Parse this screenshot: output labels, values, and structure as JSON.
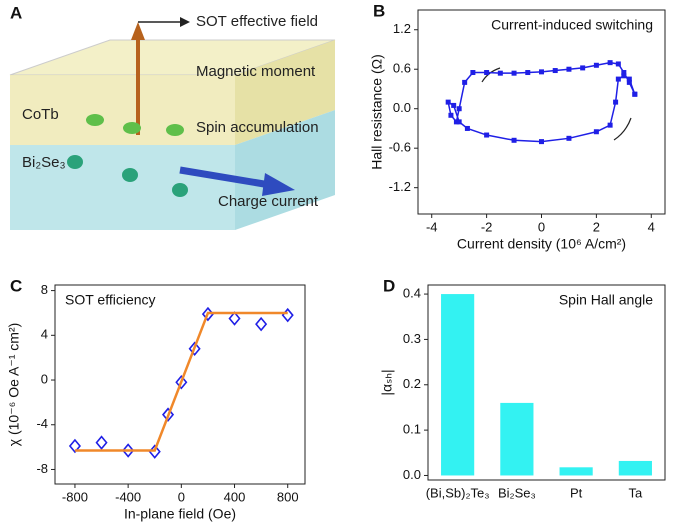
{
  "diagram": {
    "panel": "A",
    "labels": [
      "SOT effective field",
      "Magnetic moment",
      "CoTb",
      "Spin accumulation",
      "Bi₂Se₃",
      "Charge current"
    ]
  },
  "chart_data": [
    {
      "panel": "B",
      "type": "line",
      "title": "Current-induced switching",
      "xlabel": "Current density (10⁶ A/cm²)",
      "ylabel": "Hall resistance (Ω)",
      "xlim": [
        -4.5,
        4.5
      ],
      "xticks": [
        -4,
        -2,
        0,
        2,
        4
      ],
      "ylim": [
        -1.6,
        1.5
      ],
      "yticks": [
        {
          "value": 1.2,
          "label": "1.2"
        },
        {
          "value": 0.6,
          "label": "0.6"
        },
        {
          "value": 0,
          "label": "0.0"
        },
        {
          "value": -0.6,
          "label": "-0.6"
        },
        {
          "value": -1.2,
          "label": "-1.2"
        }
      ],
      "color": "#1f1fe6",
      "x": [
        3.4,
        3.2,
        3.0,
        2.8,
        2.5,
        2.0,
        1.5,
        1.0,
        0.5,
        0,
        -0.5,
        -1.0,
        -1.5,
        -2.0,
        -2.5,
        -2.8,
        -3.0,
        -3.1,
        -3.3,
        -3.4,
        -3.2,
        -3.0,
        -2.7,
        -2.0,
        -1.0,
        0,
        1.0,
        2.0,
        2.5,
        2.7,
        2.8,
        3.0,
        3.2,
        3.4
      ],
      "values": [
        0.22,
        0.4,
        0.55,
        0.68,
        0.7,
        0.66,
        0.62,
        0.6,
        0.58,
        0.56,
        0.55,
        0.54,
        0.54,
        0.55,
        0.55,
        0.4,
        0.0,
        -0.2,
        -0.1,
        0.1,
        0.05,
        -0.2,
        -0.3,
        -0.4,
        -0.48,
        -0.5,
        -0.45,
        -0.35,
        -0.25,
        0.1,
        0.45,
        0.5,
        0.45,
        0.22
      ]
    },
    {
      "panel": "C",
      "type": "scatter",
      "title": "SOT efficiency",
      "xlabel": "In-plane field (Oe)",
      "ylabel": "χ (10⁻⁶ Oe A⁻¹ cm²)",
      "xlim": [
        -950,
        930
      ],
      "xticks": [
        -800,
        -400,
        0,
        400,
        800
      ],
      "ylim": [
        -9.3,
        8.5
      ],
      "yticks": [
        8,
        4,
        0,
        -4,
        -8
      ],
      "series": [
        {
          "style": "markers",
          "color": "#1f1fe6",
          "x": [
            -800,
            -600,
            -400,
            -200,
            -100,
            0,
            100,
            200,
            400,
            600,
            800
          ],
          "values": [
            -5.9,
            -5.6,
            -6.3,
            -6.4,
            -3.1,
            -0.2,
            2.8,
            5.9,
            5.5,
            5.0,
            5.8
          ]
        },
        {
          "style": "line",
          "color": "#f0882a",
          "x": [
            -800,
            -200,
            200,
            800
          ],
          "values": [
            -6.3,
            -6.3,
            6.0,
            6.0
          ]
        }
      ]
    },
    {
      "panel": "D",
      "type": "bar",
      "title": "Spin Hall angle",
      "ylabel": "|αₛₕ|",
      "categories": [
        "(Bi,Sb)₂Te₃",
        "Bi₂Se₃",
        "Pt",
        "Ta"
      ],
      "values": [
        0.4,
        0.16,
        0.018,
        0.032
      ],
      "color": "#33f2f2",
      "ylim": [
        -0.01,
        0.42
      ],
      "yticks": [
        {
          "value": 0,
          "label": "0.0"
        },
        0.1,
        0.2,
        0.3,
        0.4
      ]
    }
  ]
}
